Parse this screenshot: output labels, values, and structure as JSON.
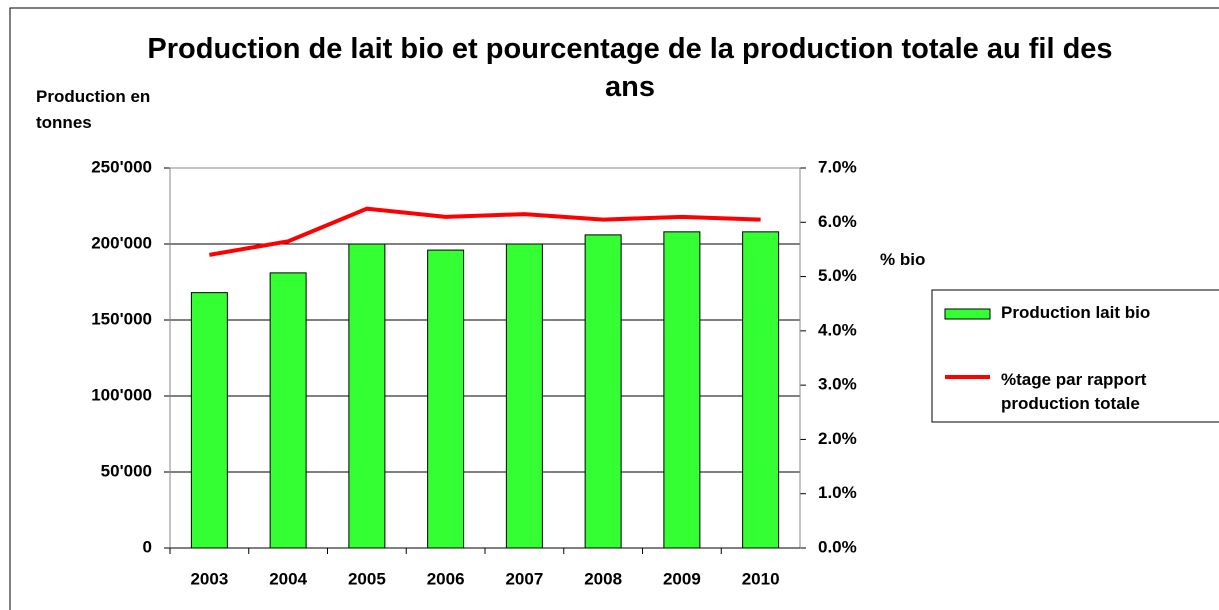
{
  "chart_data": {
    "type": "bar_line",
    "title": "Production de lait bio et pourcentage de la production totale au fil des ans",
    "y_label": "Production en tonnes",
    "y2_label": "% bio",
    "categories": [
      "2003",
      "2004",
      "2005",
      "2006",
      "2007",
      "2008",
      "2009",
      "2010"
    ],
    "series": [
      {
        "name": "Production lait bio",
        "type": "bar",
        "color": "#33ff33",
        "values": [
          168000,
          181000,
          200000,
          196000,
          200000,
          206000,
          208000,
          208000
        ]
      },
      {
        "name": "%tage par rapport production totale",
        "type": "line",
        "axis": "y2",
        "color": "#ff0000",
        "values": [
          5.4,
          5.65,
          6.25,
          6.1,
          6.15,
          6.05,
          6.1,
          6.05
        ]
      }
    ],
    "ylim": [
      0,
      250000
    ],
    "yticks": [
      0,
      {
        "value": 50000,
        "label": "50'000"
      },
      {
        "value": 100000,
        "label": "100'000"
      },
      {
        "value": 150000,
        "label": "150'000"
      },
      {
        "value": 200000,
        "label": "200'000"
      },
      {
        "value": 250000,
        "label": "250'000"
      }
    ],
    "y2lim": [
      0,
      7
    ],
    "y2ticks": [
      {
        "value": 0,
        "label": "0.0%"
      },
      {
        "value": 1,
        "label": "1.0%"
      },
      {
        "value": 2,
        "label": "2.0%"
      },
      {
        "value": 3,
        "label": "3.0%"
      },
      {
        "value": 4,
        "label": "4.0%"
      },
      {
        "value": 5,
        "label": "5.0%"
      },
      {
        "value": 6,
        "label": "6.0%"
      },
      {
        "value": 7,
        "label": "7.0%"
      }
    ],
    "grid": true,
    "legend": "right"
  }
}
